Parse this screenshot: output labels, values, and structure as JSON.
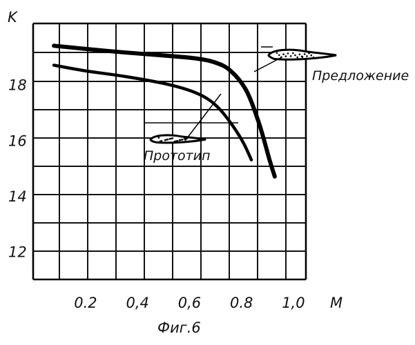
{
  "chart_data": {
    "type": "line",
    "ylabel": "K",
    "xlabel": "M",
    "caption": "Фиг.6",
    "xlim": [
      0,
      1.05
    ],
    "ylim": [
      11,
      20.2
    ],
    "x_ticks": [
      {
        "value": 0.2,
        "label": "0.2"
      },
      {
        "value": 0.4,
        "label": "0,4"
      },
      {
        "value": 0.6,
        "label": "0,6"
      },
      {
        "value": 0.8,
        "label": "0.8"
      },
      {
        "value": 1.0,
        "label": "1,0"
      }
    ],
    "y_ticks": [
      {
        "value": 12,
        "label": "12"
      },
      {
        "value": 14,
        "label": "14"
      },
      {
        "value": 16,
        "label": "16"
      },
      {
        "value": 18,
        "label": "18"
      }
    ],
    "grid": true,
    "series": [
      {
        "name": "Предложение",
        "x": [
          0.08,
          0.3,
          0.5,
          0.62,
          0.7,
          0.76,
          0.82,
          0.87,
          0.91,
          0.93
        ],
        "y": [
          19.4,
          19.2,
          19.05,
          18.95,
          18.8,
          18.5,
          17.8,
          16.6,
          15.3,
          14.7
        ]
      },
      {
        "name": "Прототип",
        "x": [
          0.08,
          0.2,
          0.35,
          0.5,
          0.6,
          0.67,
          0.72,
          0.77,
          0.81,
          0.84
        ],
        "y": [
          18.7,
          18.5,
          18.3,
          18.05,
          17.8,
          17.5,
          17.1,
          16.5,
          15.9,
          15.3
        ]
      }
    ]
  }
}
